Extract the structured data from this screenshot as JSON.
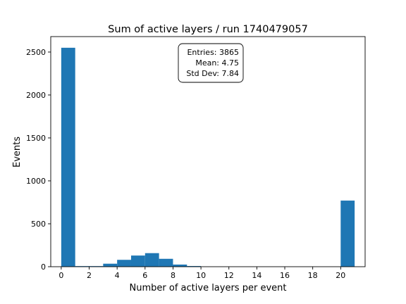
{
  "chart_data": {
    "type": "bar",
    "title": "Sum of active layers / run 1740479057",
    "xlabel": "Number of active layers per event",
    "ylabel": "Events",
    "xlim": [
      -0.75,
      21.75
    ],
    "ylim": [
      0,
      2680
    ],
    "xticks": [
      0,
      2,
      4,
      6,
      8,
      10,
      12,
      14,
      16,
      18,
      20
    ],
    "yticks": [
      0,
      500,
      1000,
      1500,
      2000,
      2500
    ],
    "bar_color": "#1f77b4",
    "bin_edges": [
      0,
      1,
      2,
      3,
      4,
      5,
      6,
      7,
      8,
      9,
      10,
      11,
      12,
      13,
      14,
      15,
      16,
      17,
      18,
      19,
      20,
      21
    ],
    "values": [
      2550,
      7,
      7,
      35,
      80,
      130,
      158,
      92,
      25,
      8,
      0,
      0,
      0,
      0,
      0,
      0,
      0,
      0,
      0,
      0,
      770
    ],
    "grid": false,
    "stats_box": {
      "entries": "Entries: 3865",
      "mean": "Mean: 4.75",
      "std_dev": "Std Dev: 7.84"
    }
  }
}
